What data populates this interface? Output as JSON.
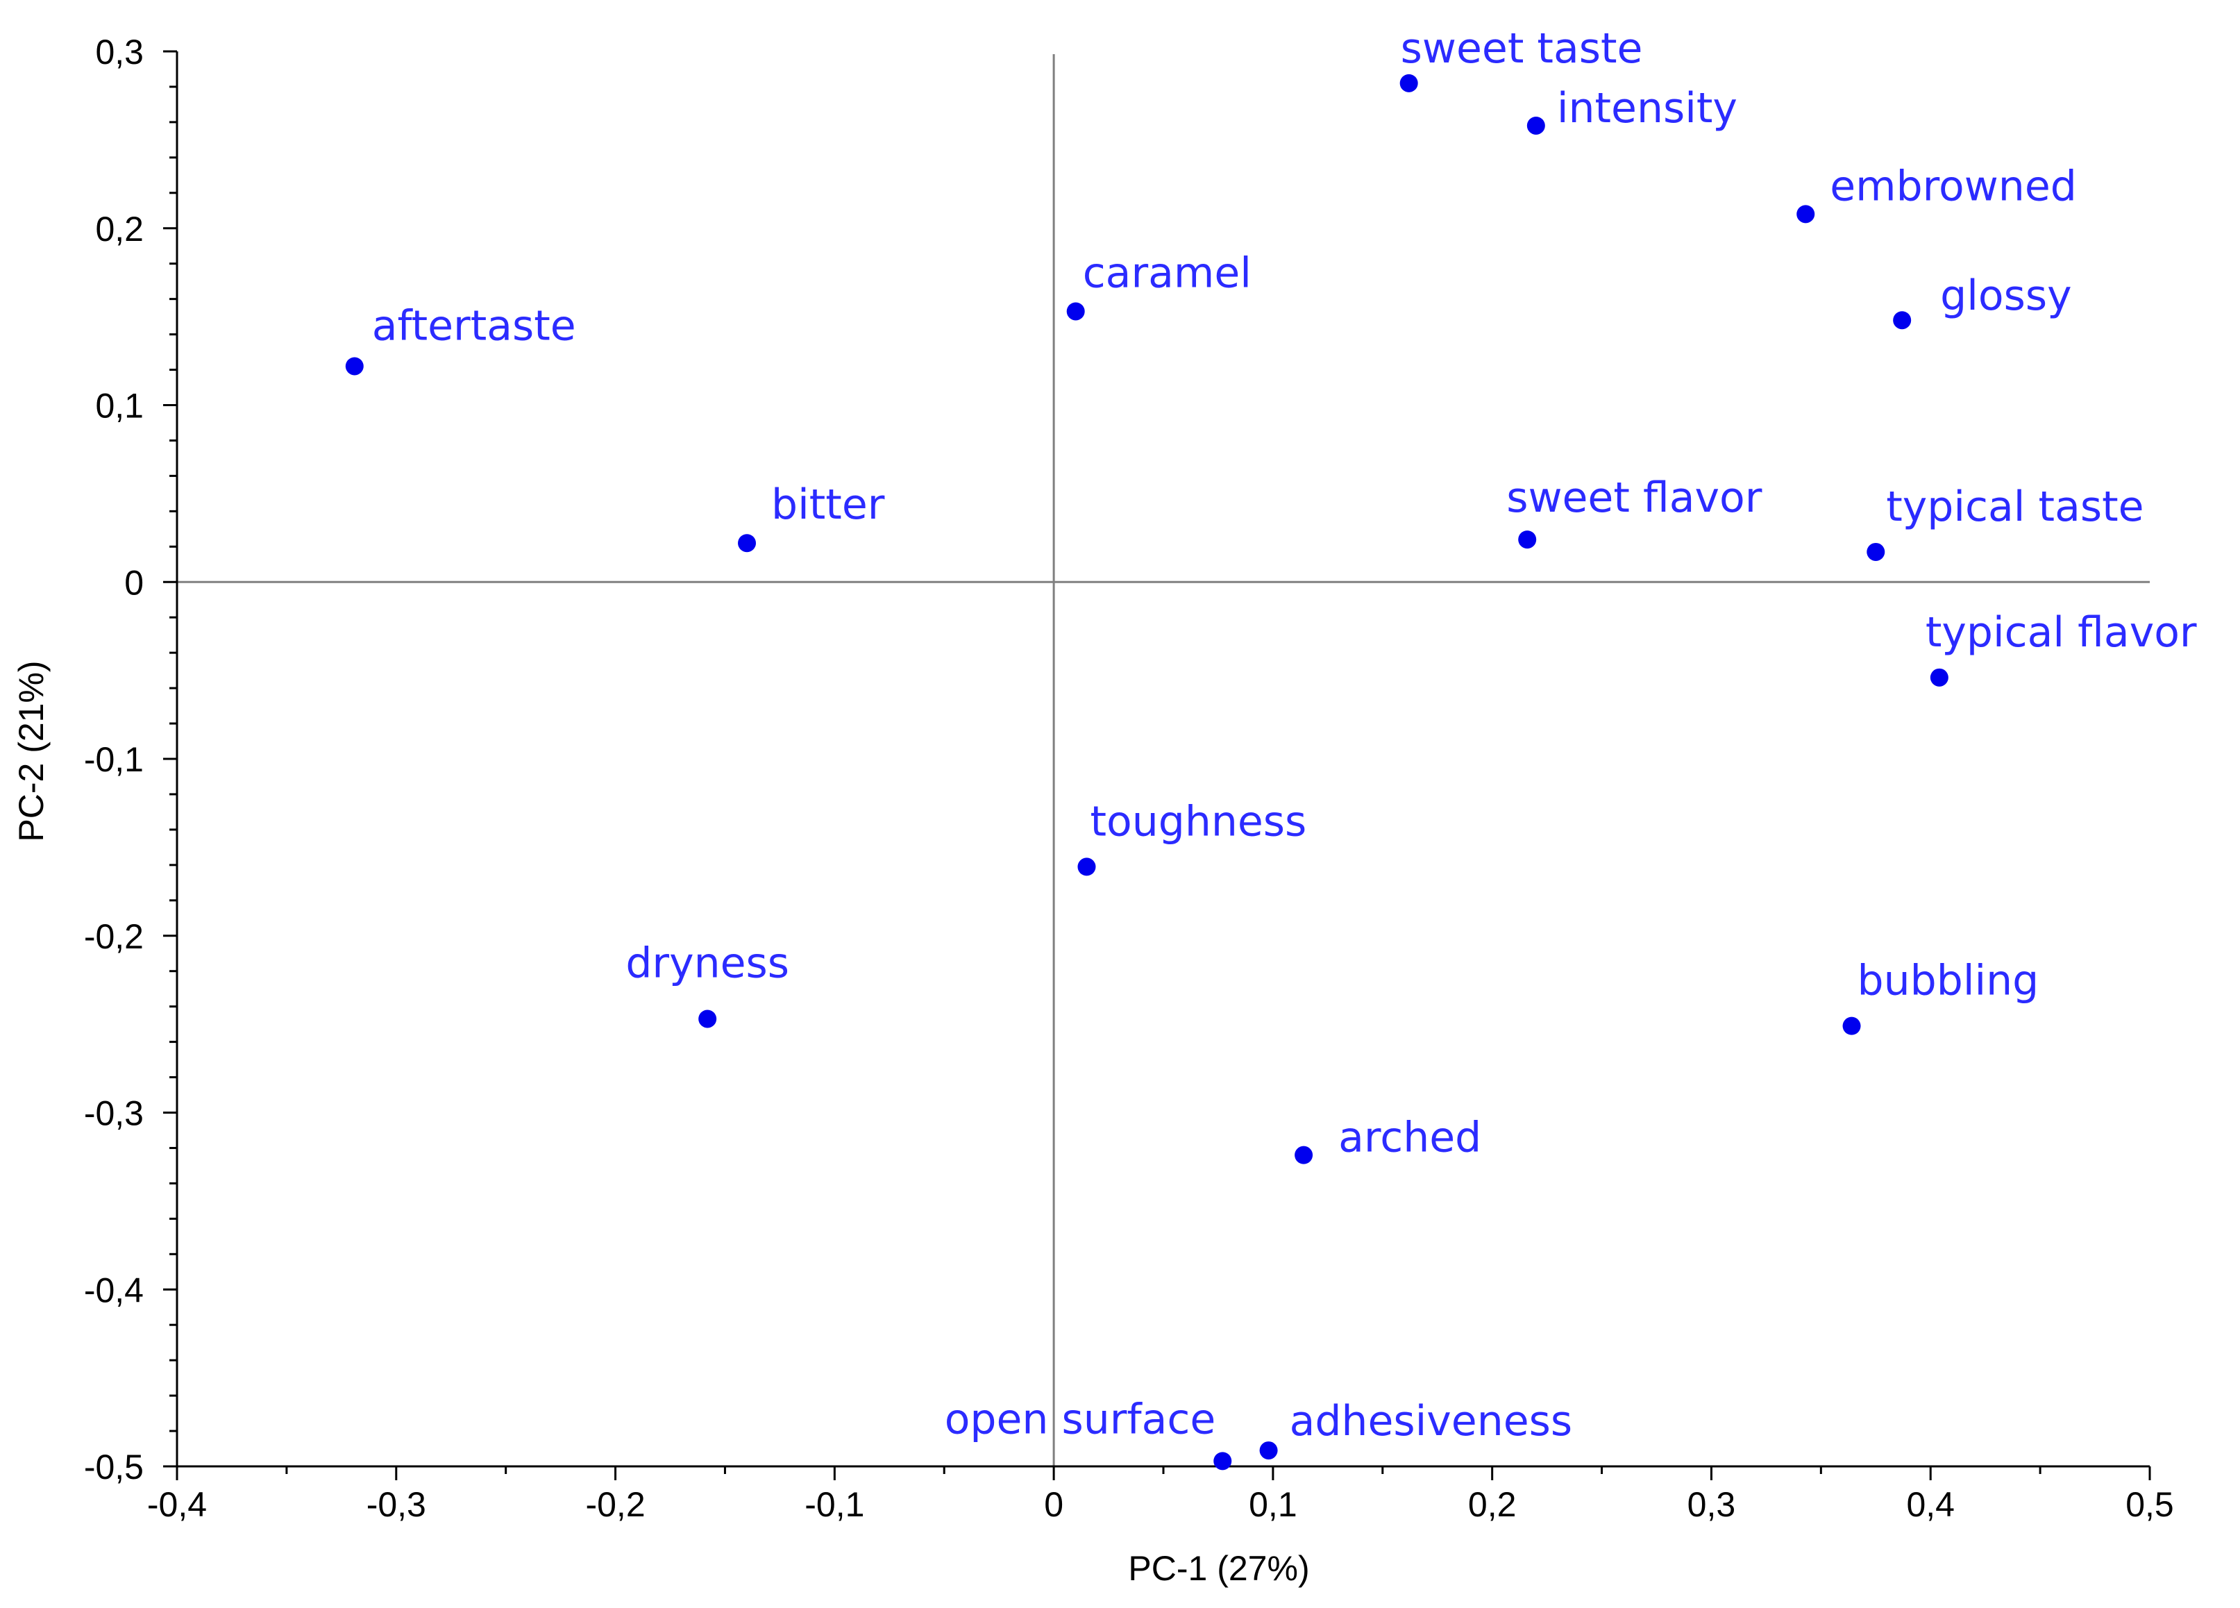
{
  "chart_data": {
    "type": "scatter",
    "title": "",
    "xlabel": "PC-1 (27%)",
    "ylabel": "PC-2 (21%)",
    "xlim": [
      -0.4,
      0.5
    ],
    "ylim": [
      -0.5,
      0.3
    ],
    "x_ticks": [
      {
        "v": -0.4,
        "label": "-0,4"
      },
      {
        "v": -0.3,
        "label": "-0,3"
      },
      {
        "v": -0.2,
        "label": "-0,2"
      },
      {
        "v": -0.1,
        "label": "-0,1"
      },
      {
        "v": 0,
        "label": "0"
      },
      {
        "v": 0.1,
        "label": "0,1"
      },
      {
        "v": 0.2,
        "label": "0,2"
      },
      {
        "v": 0.3,
        "label": "0,3"
      },
      {
        "v": 0.4,
        "label": "0,4"
      },
      {
        "v": 0.5,
        "label": "0,5"
      }
    ],
    "y_ticks": [
      {
        "v": 0.3,
        "label": "0,3"
      },
      {
        "v": 0.2,
        "label": "0,2"
      },
      {
        "v": 0.1,
        "label": "0,1"
      },
      {
        "v": 0,
        "label": "0"
      },
      {
        "v": -0.1,
        "label": "-0,1"
      },
      {
        "v": -0.2,
        "label": "-0,2"
      },
      {
        "v": -0.3,
        "label": "-0,3"
      },
      {
        "v": -0.4,
        "label": "-0,4"
      },
      {
        "v": -0.5,
        "label": "-0,5"
      }
    ],
    "origin_lines": true,
    "grid": false,
    "point_color": "#0000ee",
    "label_color": "#2b2bff",
    "points": [
      {
        "label": "sweet taste",
        "x": 0.162,
        "y": 0.282
      },
      {
        "label": "intensity",
        "x": 0.22,
        "y": 0.258
      },
      {
        "label": "embrowned",
        "x": 0.343,
        "y": 0.208
      },
      {
        "label": "glossy",
        "x": 0.387,
        "y": 0.148
      },
      {
        "label": "caramel",
        "x": 0.01,
        "y": 0.153
      },
      {
        "label": "aftertaste",
        "x": -0.319,
        "y": 0.122
      },
      {
        "label": "bitter",
        "x": -0.14,
        "y": 0.022
      },
      {
        "label": "sweet flavor",
        "x": 0.216,
        "y": 0.024
      },
      {
        "label": "typical taste",
        "x": 0.375,
        "y": 0.017
      },
      {
        "label": "typical flavor",
        "x": 0.404,
        "y": -0.054
      },
      {
        "label": "toughness",
        "x": 0.015,
        "y": -0.161
      },
      {
        "label": "dryness",
        "x": -0.158,
        "y": -0.247
      },
      {
        "label": "bubbling",
        "x": 0.364,
        "y": -0.251
      },
      {
        "label": "arched",
        "x": 0.114,
        "y": -0.324
      },
      {
        "label": "open surface",
        "x": 0.077,
        "y": -0.497
      },
      {
        "label": "adhesiveness",
        "x": 0.098,
        "y": -0.491
      }
    ]
  }
}
